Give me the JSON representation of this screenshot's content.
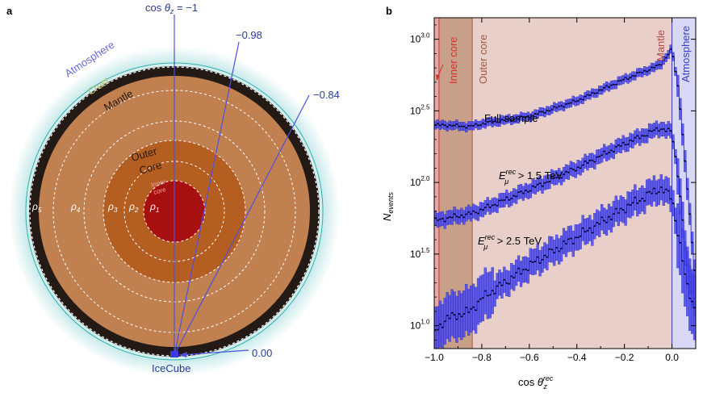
{
  "panel_a": {
    "label": "a",
    "layers": {
      "atmosphere": "Atmosphere",
      "crust": "Crust",
      "mantle": "Mantle",
      "outer_core_line1": "Outer",
      "outer_core_line2": "Core",
      "inner_core_line1": "Inner",
      "inner_core_line2": "core"
    },
    "rho_labels": [
      {
        "base": "ρ",
        "sub": "5"
      },
      {
        "base": "ρ",
        "sub": "4"
      },
      {
        "base": "ρ",
        "sub": "3"
      },
      {
        "base": "ρ",
        "sub": "2"
      },
      {
        "base": "ρ",
        "sub": "1"
      }
    ],
    "zenith_label": {
      "prefix": "cos ",
      "theta": "θ",
      "sub": "z",
      "suffix": " = −1"
    },
    "angle_values": [
      -1,
      -0.98,
      -0.84,
      0.0
    ],
    "angle_labels": [
      "−0.98",
      "−0.84",
      "0.00"
    ],
    "detector_label": "IceCube",
    "colors": {
      "mantle": "#c08050",
      "outer_core": "#b55e22",
      "inner_core": "#a81010",
      "crust": "#231a16",
      "atmosphere": "#bfe6e6",
      "lines": "#5050dd",
      "label_blue": "#2a3a9a"
    }
  },
  "panel_b": {
    "label": "b",
    "region_labels": {
      "inner_core": "Inner core",
      "outer_core": "Outer core",
      "mantle": "Mantle",
      "atmosphere": "Atmosphere"
    },
    "series_labels": {
      "full": "Full sample",
      "e15": {
        "prefix": "E",
        "sup": "rec",
        "sub": "μ",
        "suffix": " > 1.5 TeV"
      },
      "e25": {
        "prefix": "E",
        "sup": "rec",
        "sub": "μ",
        "suffix": " > 2.5 TeV"
      }
    },
    "xlabel": {
      "prefix": "cos ",
      "theta": "θ",
      "sub": "z",
      "sup": "rec"
    },
    "ylabel": {
      "base": "N",
      "sub": "events"
    },
    "colors": {
      "inner_core_bg": "#e8a8a8",
      "outer_core_bg": "#c8a08a",
      "mantle_bg": "#e8cfc9",
      "atmosphere_bg": "#d8d8f6",
      "inner_core_text": "#d83030",
      "outer_core_text": "#a05a40",
      "mantle_text": "#b04848",
      "atmosphere_text": "#3a3ac8",
      "marker": "#3a3ae0",
      "box": "#4848ee"
    }
  },
  "chart_data": {
    "type": "line",
    "xlabel": "cos θz rec",
    "ylabel": "N events",
    "xlim": [
      -1.0,
      0.1
    ],
    "ylim": [
      0.84,
      3.15
    ],
    "y_scale": "log10 (values are exponents)",
    "x_ticks": [
      -1.0,
      -0.8,
      -0.6,
      -0.4,
      -0.2,
      0.0
    ],
    "x_tick_labels": [
      "−1.0",
      "−0.8",
      "−0.6",
      "−0.4",
      "−0.2",
      "0.0"
    ],
    "y_ticks": [
      1.0,
      1.5,
      2.0,
      2.5,
      3.0
    ],
    "y_tick_labels": [
      {
        "base": "10",
        "exp": "1.0"
      },
      {
        "base": "10",
        "exp": "1.5"
      },
      {
        "base": "10",
        "exp": "2.0"
      },
      {
        "base": "10",
        "exp": "2.5"
      },
      {
        "base": "10",
        "exp": "3.0"
      }
    ],
    "region_bounds": [
      {
        "name": "Inner core",
        "x": [
          -1.0,
          -0.98
        ]
      },
      {
        "name": "Outer core",
        "x": [
          -0.98,
          -0.84
        ]
      },
      {
        "name": "Mantle",
        "x": [
          -0.84,
          0.0
        ]
      },
      {
        "name": "Atmosphere",
        "x": [
          0.0,
          0.1
        ]
      }
    ],
    "bin_width": 0.01,
    "series": [
      {
        "name": "Full sample",
        "anchors": [
          [
            -1.0,
            2.4
          ],
          [
            -0.95,
            2.4
          ],
          [
            -0.85,
            2.39
          ],
          [
            -0.8,
            2.41
          ],
          [
            -0.6,
            2.46
          ],
          [
            -0.4,
            2.57
          ],
          [
            -0.2,
            2.72
          ],
          [
            -0.05,
            2.82
          ],
          [
            0.0,
            2.93
          ],
          [
            0.03,
            2.62
          ],
          [
            0.06,
            2.05
          ],
          [
            0.1,
            1.3
          ]
        ],
        "err": 0.03
      },
      {
        "name": "E > 1.5 TeV",
        "anchors": [
          [
            -1.0,
            1.73
          ],
          [
            -0.95,
            1.75
          ],
          [
            -0.85,
            1.78
          ],
          [
            -0.8,
            1.81
          ],
          [
            -0.6,
            1.95
          ],
          [
            -0.4,
            2.1
          ],
          [
            -0.2,
            2.27
          ],
          [
            -0.05,
            2.38
          ],
          [
            0.0,
            2.35
          ],
          [
            0.03,
            2.0
          ],
          [
            0.06,
            1.45
          ],
          [
            0.1,
            1.15
          ]
        ],
        "err": 0.05
      },
      {
        "name": "E > 2.5 TeV",
        "anchors": [
          [
            -1.0,
            0.95
          ],
          [
            -0.95,
            1.05
          ],
          [
            -0.85,
            1.1
          ],
          [
            -0.8,
            1.19
          ],
          [
            -0.6,
            1.42
          ],
          [
            -0.4,
            1.62
          ],
          [
            -0.2,
            1.82
          ],
          [
            -0.05,
            1.96
          ],
          [
            0.0,
            1.9
          ],
          [
            0.03,
            1.6
          ],
          [
            0.06,
            1.3
          ],
          [
            0.1,
            1.1
          ]
        ],
        "err": 0.09
      }
    ]
  }
}
